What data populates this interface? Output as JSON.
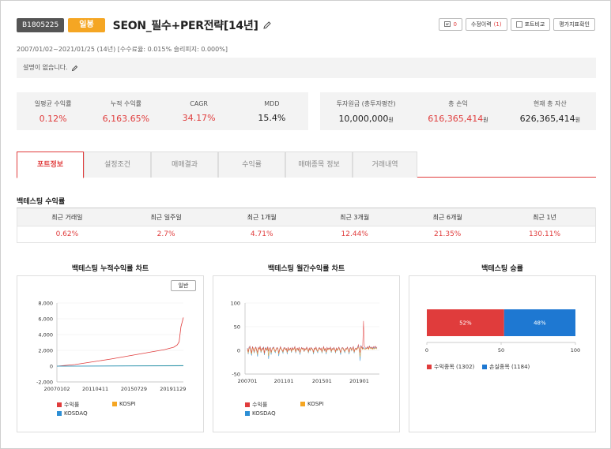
{
  "header": {
    "code": "B1805225",
    "period_badge": "일봉",
    "title": "SEON_필수+PER전략[14년]",
    "comment_count": "0",
    "edit_history_label": "수정이력",
    "edit_history_count": "(1)",
    "compare_label": "포트비교",
    "eval_label": "평가지표확인"
  },
  "sub_info": "2007/01/02~2021/01/25 (14년) [수수료율: 0.015% 슬리피지: 0.000%]",
  "description": "설명이 없습니다.",
  "stats_left": [
    {
      "label": "일평균 수익률",
      "value": "0.12%"
    },
    {
      "label": "누적 수익률",
      "value": "6,163.65%"
    },
    {
      "label": "CAGR",
      "value": "34.17%"
    },
    {
      "label": "MDD",
      "value": "15.4%"
    }
  ],
  "stats_right": [
    {
      "label": "투자원금 (총투자평잔)",
      "value": "10,000,000",
      "unit": "원"
    },
    {
      "label": "총 손익",
      "value": "616,365,414",
      "unit": "원"
    },
    {
      "label": "현재 총 자산",
      "value": "626,365,414",
      "unit": "원"
    }
  ],
  "tabs": [
    "포트정보",
    "설정조건",
    "매매결과",
    "수익률",
    "매매종목 정보",
    "거래내역"
  ],
  "backtest": {
    "title": "백테스팅 수익률",
    "headers": [
      "최근 거래일",
      "최근 일주일",
      "최근 1개월",
      "최근 3개월",
      "최근 6개월",
      "최근 1년"
    ],
    "values": [
      "0.62%",
      "2.7%",
      "4.71%",
      "12.44%",
      "21.35%",
      "130.11%"
    ]
  },
  "charts": {
    "cumulative_title": "백테스팅 누적수익률 차트",
    "cumulative_button": "일반",
    "monthly_title": "백테스팅 월간수익률 차트",
    "winrate_title": "백테스팅 승률",
    "legend": {
      "returns": "수익률",
      "kospi": "KOSPI",
      "kosdaq": "KOSDAQ"
    },
    "winrate_legend": {
      "win": "수익종목 (1302)",
      "loss": "손실종목 (1184)"
    }
  },
  "colors": {
    "red": "#e03c3c",
    "orange": "#f5a623",
    "blue": "#2d8fd5",
    "green": "#4caf50",
    "bar_blue": "#1e78d2"
  },
  "chart_data": [
    {
      "type": "line",
      "title": "백테스팅 누적수익률 차트",
      "x_ticks": [
        "20070102",
        "20110411",
        "20150729",
        "20191129"
      ],
      "ylim": [
        -2000,
        8000
      ],
      "y_ticks": [
        -2000,
        0,
        2000,
        4000,
        6000,
        8000
      ],
      "series": [
        {
          "name": "수익률",
          "x": [
            2007.0,
            2009.0,
            2011.0,
            2013.0,
            2015.0,
            2017.0,
            2019.0,
            2020.0,
            2020.4,
            2020.6,
            2020.8,
            2021.07
          ],
          "values": [
            0,
            200,
            550,
            900,
            1300,
            1700,
            2100,
            2400,
            2700,
            3100,
            5000,
            6164
          ]
        },
        {
          "name": "KOSPI",
          "x": [
            2007.0,
            2021.07
          ],
          "values": [
            0,
            70
          ]
        },
        {
          "name": "KOSDAQ",
          "x": [
            2007.0,
            2021.07
          ],
          "values": [
            0,
            40
          ]
        }
      ]
    },
    {
      "type": "line",
      "title": "백테스팅 월간수익률 차트",
      "x_ticks": [
        "200701",
        "201101",
        "201501",
        "201901"
      ],
      "ylim": [
        -50,
        100
      ],
      "y_ticks": [
        -50,
        0,
        50,
        100
      ],
      "series": [
        {
          "name": "수익률",
          "values": [
            4,
            -3,
            6,
            9,
            2,
            -5,
            8,
            3,
            -2,
            5,
            7,
            1,
            -4,
            6,
            3,
            9,
            -1,
            4,
            2,
            7,
            -6,
            5,
            3,
            1,
            8,
            -2,
            4,
            6,
            -3,
            2,
            5,
            7,
            1,
            -1,
            3,
            6,
            4,
            -5,
            2,
            8,
            3,
            1,
            -2,
            5,
            6,
            2,
            4,
            -3,
            7,
            1,
            3,
            5,
            -1,
            6,
            2,
            4,
            8,
            -2,
            3,
            5,
            1,
            7,
            -4,
            2,
            6,
            3,
            5,
            -1,
            4,
            2,
            7,
            3,
            -2,
            5,
            1,
            6,
            4,
            2,
            -3,
            5,
            3,
            7,
            1,
            -1,
            4,
            6,
            2,
            5,
            -2,
            3,
            8,
            1,
            4,
            -3,
            6,
            2,
            5,
            3,
            7,
            -1,
            4,
            2,
            6,
            3,
            -2,
            5,
            1,
            4,
            7,
            2,
            -4,
            3,
            6,
            5,
            1,
            -1,
            4,
            3,
            7,
            2,
            -3,
            5,
            6,
            1,
            4,
            8,
            -2,
            3,
            5,
            2,
            6,
            12,
            4,
            -5,
            9,
            7,
            3,
            62,
            10,
            6,
            4,
            5,
            8,
            3,
            9,
            6,
            5,
            7,
            4,
            8,
            6,
            9,
            5,
            7
          ]
        },
        {
          "name": "KOSPI",
          "values": [
            3,
            -6,
            5,
            4,
            -2,
            -8,
            6,
            2,
            -4,
            3,
            5,
            -1,
            -9,
            4,
            2,
            6,
            -3,
            1,
            3,
            5,
            -7,
            2,
            4,
            0,
            5,
            -12,
            3,
            4,
            -6,
            1,
            4,
            5,
            -1,
            -3,
            2,
            4,
            3,
            -8,
            1,
            5,
            2,
            0,
            -4,
            3,
            4,
            1,
            3,
            -5,
            4,
            0,
            2,
            3,
            -3,
            4,
            1,
            2,
            5,
            -4,
            2,
            3,
            0,
            4,
            -6,
            1,
            4,
            2,
            3,
            -2,
            3,
            1,
            4,
            2,
            -4,
            3,
            0,
            4,
            3,
            1,
            -5,
            3,
            2,
            4,
            0,
            -3,
            3,
            4,
            1,
            3,
            -4,
            2,
            5,
            0,
            3,
            -5,
            4,
            1,
            3,
            2,
            4,
            -3,
            3,
            1,
            4,
            2,
            -4,
            3,
            0,
            3,
            4,
            1,
            -6,
            2,
            4,
            3,
            0,
            -3,
            3,
            2,
            4,
            1,
            -5,
            3,
            4,
            0,
            3,
            5,
            -4,
            2,
            3,
            1,
            4,
            6,
            2,
            -14,
            7,
            5,
            2,
            4,
            3,
            2,
            3,
            4,
            5,
            2,
            6,
            4,
            3,
            5,
            2,
            4,
            3,
            5,
            4,
            3
          ]
        },
        {
          "name": "KOSDAQ",
          "values": [
            5,
            -8,
            7,
            6,
            -3,
            -11,
            8,
            3,
            -6,
            4,
            7,
            -2,
            -13,
            6,
            3,
            8,
            -5,
            2,
            4,
            7,
            -10,
            3,
            6,
            -1,
            7,
            -18,
            4,
            6,
            -9,
            2,
            6,
            7,
            -2,
            -5,
            3,
            6,
            4,
            -12,
            2,
            7,
            3,
            -1,
            -6,
            4,
            6,
            2,
            4,
            -8,
            6,
            -1,
            3,
            4,
            -5,
            6,
            2,
            3,
            7,
            -6,
            3,
            4,
            -1,
            6,
            -9,
            2,
            6,
            3,
            4,
            -3,
            4,
            2,
            6,
            3,
            -6,
            4,
            -1,
            6,
            4,
            2,
            -8,
            4,
            3,
            6,
            -1,
            -5,
            4,
            6,
            2,
            4,
            -6,
            3,
            7,
            -1,
            4,
            -8,
            6,
            2,
            4,
            3,
            6,
            -5,
            4,
            2,
            6,
            3,
            -6,
            4,
            -1,
            4,
            6,
            2,
            -9,
            3,
            6,
            4,
            -1,
            -5,
            4,
            3,
            6,
            2,
            -8,
            4,
            6,
            -1,
            4,
            7,
            -6,
            3,
            4,
            2,
            6,
            9,
            3,
            -22,
            10,
            7,
            3,
            6,
            4,
            3,
            4,
            6,
            7,
            3,
            9,
            6,
            4,
            7,
            3,
            6,
            4,
            7,
            6,
            4
          ]
        }
      ]
    },
    {
      "type": "bar",
      "title": "백테스팅 승률",
      "orientation": "horizontal-stacked",
      "xlim": [
        0,
        100
      ],
      "x_ticks": [
        0,
        50,
        100
      ],
      "series": [
        {
          "name": "수익종목 (1302)",
          "values": [
            52
          ],
          "label": "52%"
        },
        {
          "name": "손실종목 (1184)",
          "values": [
            48
          ],
          "label": "48%"
        }
      ]
    }
  ]
}
